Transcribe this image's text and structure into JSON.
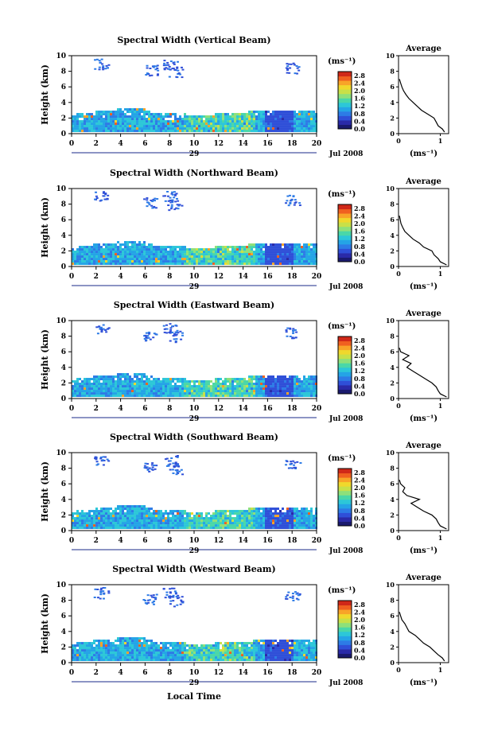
{
  "figure": {
    "xlabel_bottom": "Local Time",
    "date_label": "Jul 2008",
    "day_label": "29",
    "colorbar_unit": "(ms⁻¹)",
    "average_title": "Average",
    "average_xlabel": "(ms⁻¹)"
  },
  "chart_data": [
    {
      "type": "heatmap",
      "title": "Spectral Width (Vertical Beam)",
      "ylabel": "Height (km)",
      "x_ticks": [
        "0",
        "2",
        "4",
        "6",
        "8",
        "10",
        "12",
        "14",
        "16",
        "18",
        "20"
      ],
      "y_ticks": [
        "0",
        "2",
        "4",
        "6",
        "8",
        "10"
      ],
      "xlim": [
        0,
        20
      ],
      "ylim": [
        0,
        10
      ],
      "colorbar": {
        "ticks": [
          "0.0",
          "0.4",
          "0.8",
          "1.2",
          "1.6",
          "2.0",
          "2.4",
          "2.8"
        ],
        "range": [
          0,
          3.0
        ]
      },
      "average_profile": {
        "x_ticks": [
          "0",
          "1"
        ],
        "xlim": [
          0,
          1.2
        ],
        "ylim": [
          0,
          10
        ],
        "points": [
          [
            1.1,
            0.2
          ],
          [
            1.05,
            0.6
          ],
          [
            0.95,
            1.0
          ],
          [
            0.9,
            1.5
          ],
          [
            0.85,
            2.0
          ],
          [
            0.7,
            2.5
          ],
          [
            0.55,
            3.0
          ],
          [
            0.45,
            3.5
          ],
          [
            0.35,
            4.0
          ],
          [
            0.25,
            4.5
          ],
          [
            0.18,
            5.0
          ],
          [
            0.12,
            5.5
          ],
          [
            0.08,
            6.0
          ],
          [
            0.05,
            6.5
          ],
          [
            0.02,
            7.0
          ]
        ]
      }
    },
    {
      "type": "heatmap",
      "title": "Spectral Width (Northward Beam)",
      "ylabel": "Height (km)",
      "x_ticks": [
        "0",
        "2",
        "4",
        "6",
        "8",
        "10",
        "12",
        "14",
        "16",
        "18",
        "20"
      ],
      "y_ticks": [
        "0",
        "2",
        "4",
        "6",
        "8",
        "10"
      ],
      "xlim": [
        0,
        20
      ],
      "ylim": [
        0,
        10
      ],
      "colorbar": {
        "ticks": [
          "0.0",
          "0.4",
          "0.8",
          "1.2",
          "1.6",
          "2.0",
          "2.4",
          "2.8"
        ],
        "range": [
          0,
          3.0
        ]
      },
      "average_profile": {
        "x_ticks": [
          "0",
          "1"
        ],
        "xlim": [
          0,
          1.2
        ],
        "ylim": [
          0,
          10
        ],
        "points": [
          [
            1.15,
            0.2
          ],
          [
            1.0,
            0.6
          ],
          [
            0.95,
            1.0
          ],
          [
            0.85,
            1.5
          ],
          [
            0.8,
            2.0
          ],
          [
            0.6,
            2.5
          ],
          [
            0.5,
            3.0
          ],
          [
            0.35,
            3.5
          ],
          [
            0.25,
            4.0
          ],
          [
            0.15,
            4.5
          ],
          [
            0.1,
            5.0
          ],
          [
            0.06,
            5.5
          ],
          [
            0.04,
            6.0
          ],
          [
            0.02,
            6.5
          ]
        ]
      }
    },
    {
      "type": "heatmap",
      "title": "Spectral Width (Eastward Beam)",
      "ylabel": "Height (km)",
      "x_ticks": [
        "0",
        "2",
        "4",
        "6",
        "8",
        "10",
        "12",
        "14",
        "16",
        "18",
        "20"
      ],
      "y_ticks": [
        "0",
        "2",
        "4",
        "6",
        "8",
        "10"
      ],
      "xlim": [
        0,
        20
      ],
      "ylim": [
        0,
        10
      ],
      "colorbar": {
        "ticks": [
          "0.0",
          "0.4",
          "0.8",
          "1.2",
          "1.6",
          "2.0",
          "2.4",
          "2.8"
        ],
        "range": [
          0,
          3.0
        ]
      },
      "average_profile": {
        "x_ticks": [
          "0",
          "1"
        ],
        "xlim": [
          0,
          1.2
        ],
        "ylim": [
          0,
          10
        ],
        "points": [
          [
            1.15,
            0.2
          ],
          [
            1.0,
            0.6
          ],
          [
            0.95,
            1.0
          ],
          [
            0.9,
            1.5
          ],
          [
            0.8,
            2.0
          ],
          [
            0.65,
            2.5
          ],
          [
            0.5,
            3.0
          ],
          [
            0.35,
            3.5
          ],
          [
            0.2,
            4.0
          ],
          [
            0.3,
            4.5
          ],
          [
            0.1,
            5.0
          ],
          [
            0.25,
            5.5
          ],
          [
            0.05,
            6.0
          ],
          [
            0.02,
            6.5
          ]
        ]
      }
    },
    {
      "type": "heatmap",
      "title": "Spectral Width (Southward Beam)",
      "ylabel": "Height (km)",
      "x_ticks": [
        "0",
        "2",
        "4",
        "6",
        "8",
        "10",
        "12",
        "14",
        "16",
        "18",
        "20"
      ],
      "y_ticks": [
        "0",
        "2",
        "4",
        "6",
        "8",
        "10"
      ],
      "xlim": [
        0,
        20
      ],
      "ylim": [
        0,
        10
      ],
      "colorbar": {
        "ticks": [
          "0.0",
          "0.4",
          "0.8",
          "1.2",
          "1.6",
          "2.0",
          "2.4",
          "2.8"
        ],
        "range": [
          0,
          3.0
        ]
      },
      "average_profile": {
        "x_ticks": [
          "0",
          "1"
        ],
        "xlim": [
          0,
          1.2
        ],
        "ylim": [
          0,
          10
        ],
        "points": [
          [
            1.15,
            0.2
          ],
          [
            1.0,
            0.6
          ],
          [
            0.95,
            1.0
          ],
          [
            0.9,
            1.5
          ],
          [
            0.8,
            2.0
          ],
          [
            0.6,
            2.5
          ],
          [
            0.45,
            3.0
          ],
          [
            0.3,
            3.5
          ],
          [
            0.5,
            4.0
          ],
          [
            0.2,
            4.5
          ],
          [
            0.1,
            5.0
          ],
          [
            0.15,
            5.5
          ],
          [
            0.05,
            6.0
          ],
          [
            0.02,
            6.5
          ]
        ]
      }
    },
    {
      "type": "heatmap",
      "title": "Spectral Width (Westward Beam)",
      "ylabel": "Height (km)",
      "x_ticks": [
        "0",
        "2",
        "4",
        "6",
        "8",
        "10",
        "12",
        "14",
        "16",
        "18",
        "20"
      ],
      "y_ticks": [
        "0",
        "2",
        "4",
        "6",
        "8",
        "10"
      ],
      "xlim": [
        0,
        20
      ],
      "ylim": [
        0,
        10
      ],
      "colorbar": {
        "ticks": [
          "0.0",
          "0.4",
          "0.8",
          "1.2",
          "1.6",
          "2.0",
          "2.4",
          "2.8"
        ],
        "range": [
          0,
          3.0
        ]
      },
      "average_profile": {
        "x_ticks": [
          "0",
          "1"
        ],
        "xlim": [
          0,
          1.2
        ],
        "ylim": [
          0,
          10
        ],
        "points": [
          [
            1.1,
            0.2
          ],
          [
            1.05,
            0.6
          ],
          [
            0.95,
            1.0
          ],
          [
            0.85,
            1.5
          ],
          [
            0.75,
            2.0
          ],
          [
            0.6,
            2.5
          ],
          [
            0.5,
            3.0
          ],
          [
            0.4,
            3.5
          ],
          [
            0.25,
            4.0
          ],
          [
            0.2,
            4.5
          ],
          [
            0.15,
            5.0
          ],
          [
            0.08,
            5.5
          ],
          [
            0.05,
            6.0
          ],
          [
            0.02,
            6.5
          ]
        ]
      }
    }
  ]
}
